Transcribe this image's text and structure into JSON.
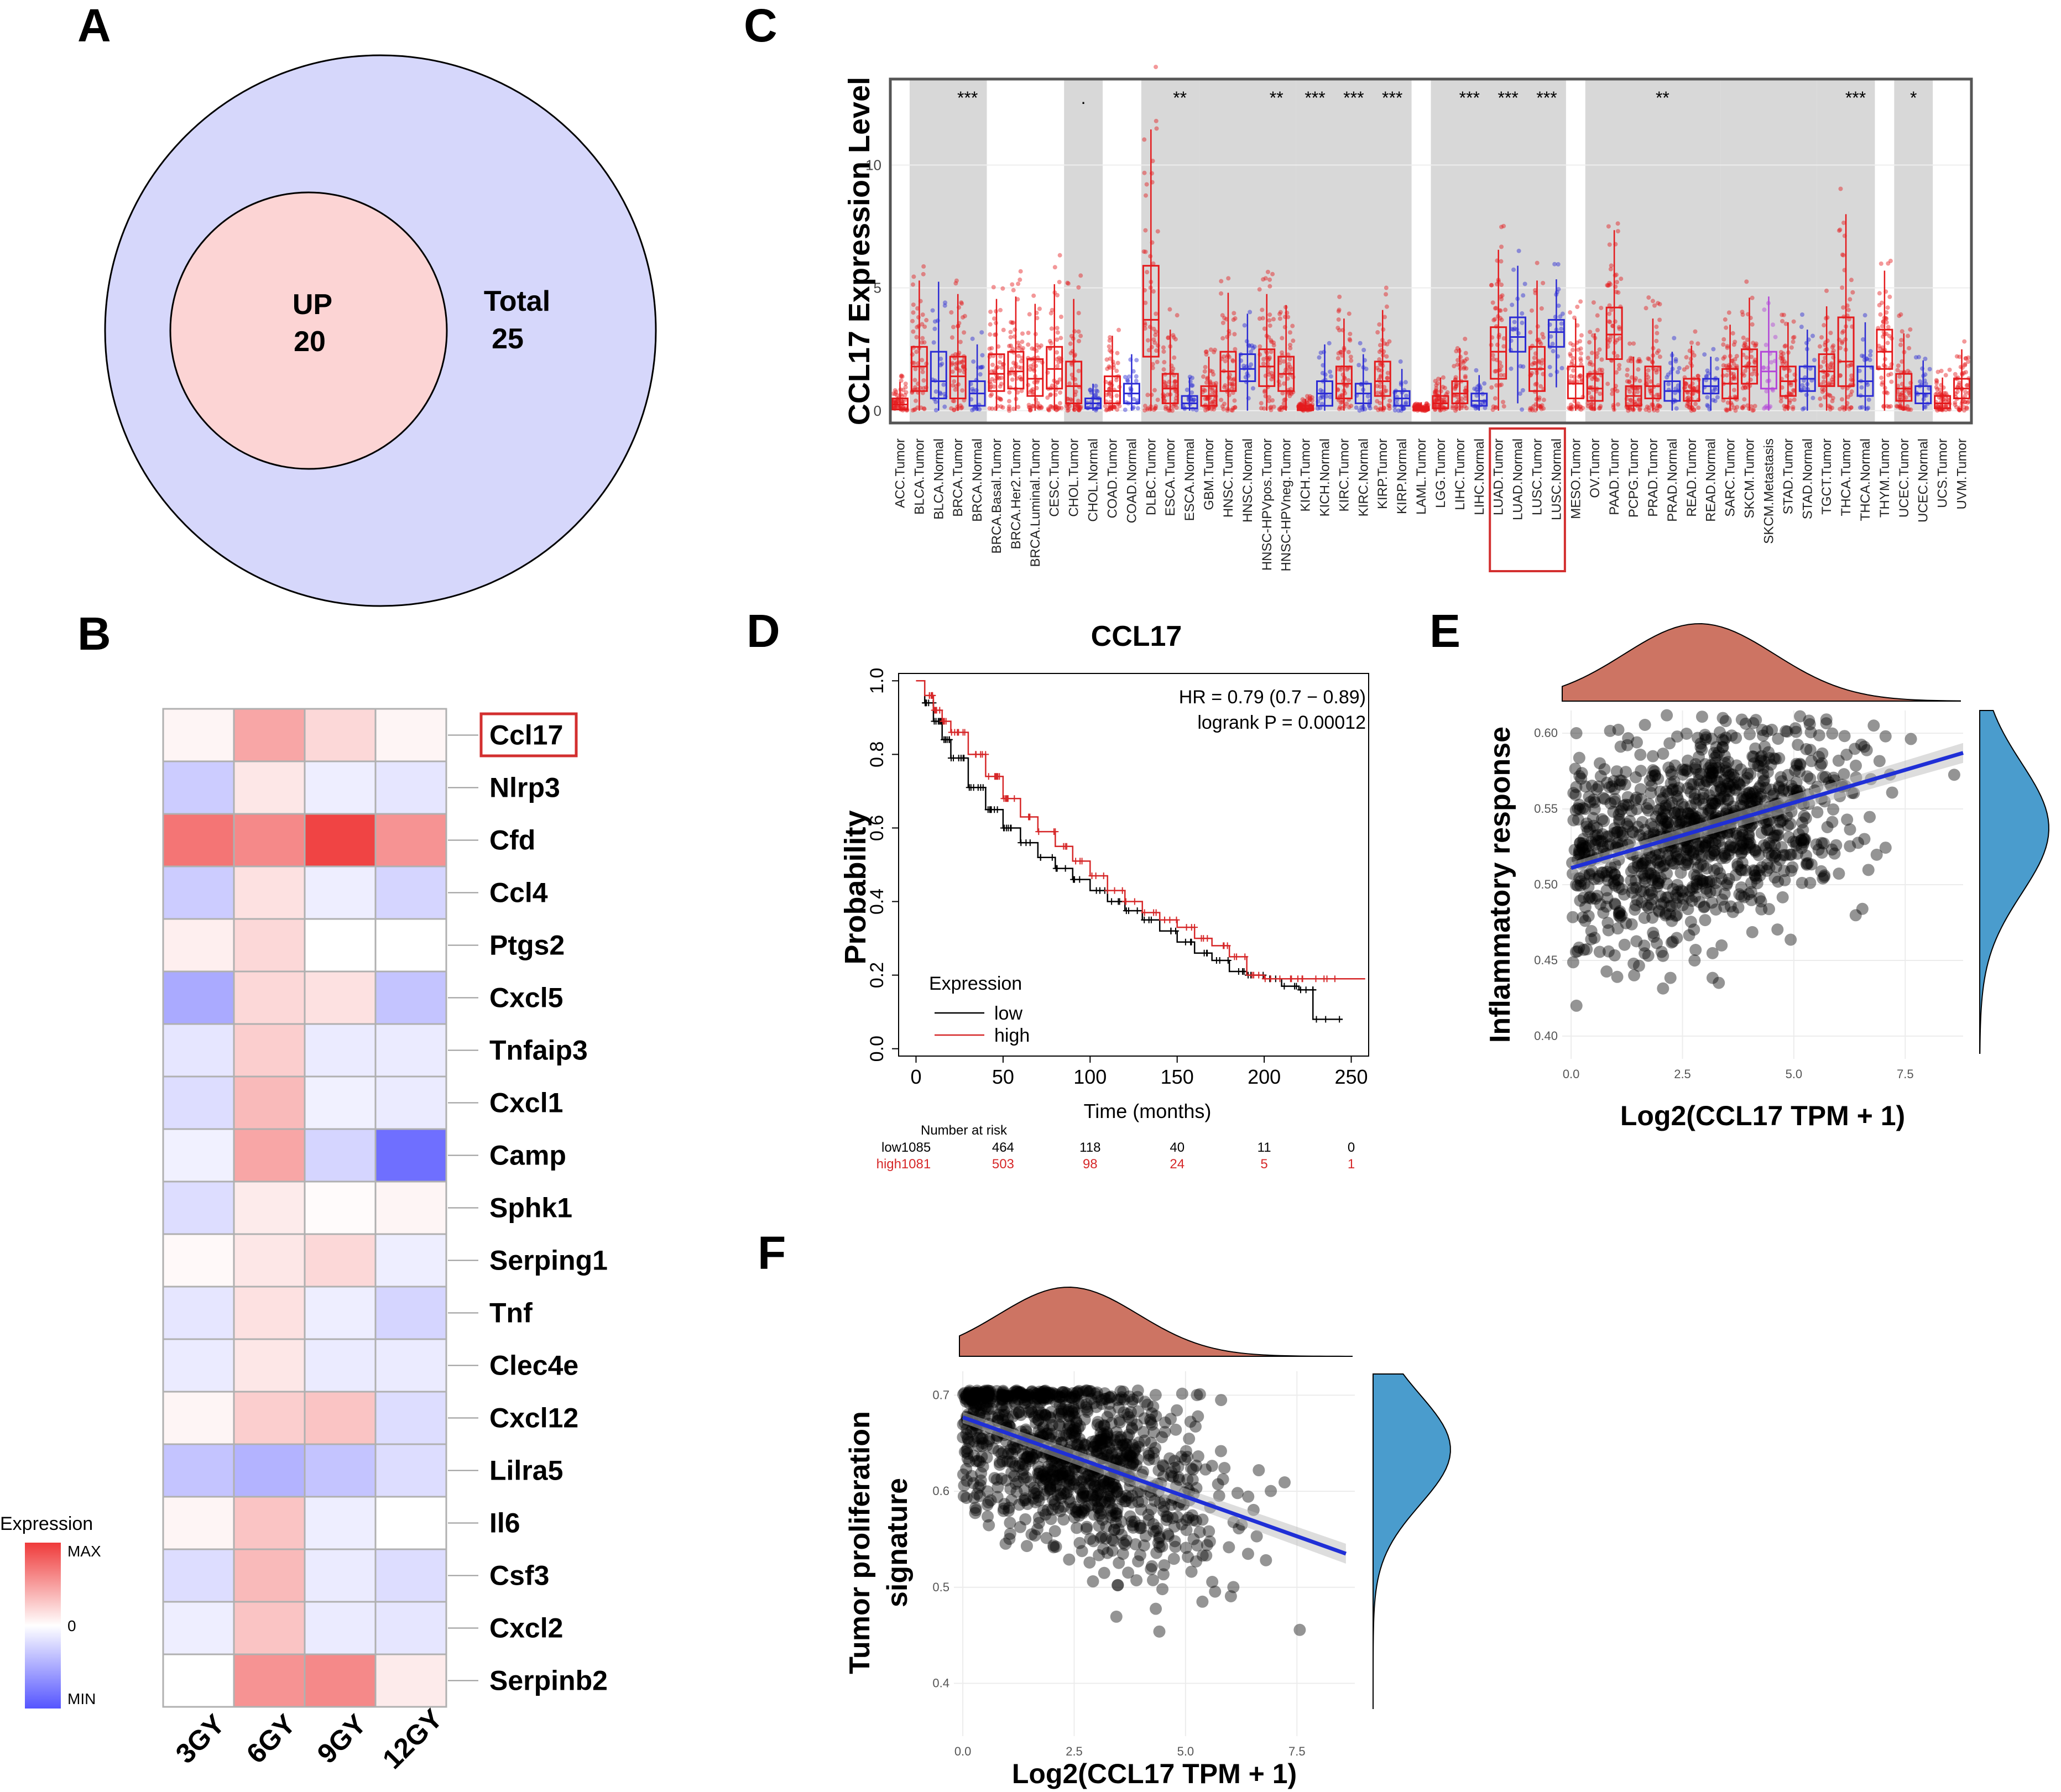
{
  "panels": {
    "A": {
      "label": "A",
      "inner_label": "UP",
      "inner_value": "20",
      "outer_label": "Total",
      "outer_value": "25",
      "colors": {
        "outer": "#d6d7fb",
        "inner": "#fcd4d4"
      }
    },
    "B": {
      "label": "B",
      "legend_title": "Expression",
      "legend_ticks": [
        "MAX",
        "0",
        "MIN"
      ],
      "highlight_gene": "Ccl17"
    },
    "C": {
      "label": "C"
    },
    "D": {
      "label": "D"
    },
    "E": {
      "label": "E"
    },
    "F": {
      "label": "F"
    }
  },
  "chart_data": [
    {
      "panel": "B",
      "type": "heatmap",
      "columns": [
        "3GY",
        "6GY",
        "9GY",
        "12GY"
      ],
      "rows": [
        "Ccl17",
        "Nlrp3",
        "Cfd",
        "Ccl4",
        "Ptgs2",
        "Cxcl5",
        "Tnfaip3",
        "Cxcl1",
        "Camp",
        "Sphk1",
        "Serping1",
        "Tnf",
        "Clec4e",
        "Cxcl12",
        "Lilra5",
        "Il6",
        "Csf3",
        "Cxcl2",
        "Serpinb2"
      ],
      "values": [
        [
          0.05,
          0.45,
          0.2,
          0.05
        ],
        [
          -0.3,
          0.12,
          -0.1,
          -0.15
        ],
        [
          0.7,
          0.6,
          0.95,
          0.55
        ],
        [
          -0.3,
          0.15,
          -0.1,
          -0.25
        ],
        [
          0.08,
          0.2,
          0.0,
          0.0
        ],
        [
          -0.5,
          0.2,
          0.15,
          -0.35
        ],
        [
          -0.15,
          0.25,
          -0.12,
          -0.12
        ],
        [
          -0.2,
          0.35,
          -0.08,
          -0.12
        ],
        [
          -0.08,
          0.45,
          -0.25,
          -0.85
        ],
        [
          -0.2,
          0.1,
          0.02,
          0.05
        ],
        [
          0.03,
          0.12,
          0.2,
          -0.1
        ],
        [
          -0.15,
          0.15,
          -0.1,
          -0.25
        ],
        [
          -0.12,
          0.12,
          -0.12,
          -0.12
        ],
        [
          0.05,
          0.25,
          0.3,
          -0.2
        ],
        [
          -0.35,
          -0.45,
          -0.35,
          -0.2
        ],
        [
          0.05,
          0.3,
          -0.1,
          0.0
        ],
        [
          -0.2,
          0.35,
          -0.12,
          -0.2
        ],
        [
          -0.1,
          0.3,
          -0.12,
          -0.15
        ],
        [
          0.0,
          0.55,
          0.6,
          0.1
        ]
      ],
      "color_scale": {
        "max": "#ef3a3a",
        "mid": "#ffffff",
        "min": "#5555ff"
      }
    },
    {
      "panel": "C",
      "type": "box",
      "ylabel": "CCL17 Expression Level",
      "yticks": [
        0,
        5,
        10
      ],
      "ylim": [
        -0.5,
        13.5
      ],
      "highlight": [
        "LUAD.Tumor",
        "LUAD.Normal",
        "LUSC.Tumor",
        "LUSC.Normal"
      ],
      "categories": [
        "ACC.Tumor",
        "BLCA.Tumor",
        "BLCA.Normal",
        "BRCA.Tumor",
        "BRCA.Normal",
        "BRCA.Basal.Tumor",
        "BRCA.Her2.Tumor",
        "BRCA.Luminal.Tumor",
        "CESC.Tumor",
        "CHOL.Tumor",
        "CHOL.Normal",
        "COAD.Tumor",
        "COAD.Normal",
        "DLBC.Tumor",
        "ESCA.Tumor",
        "ESCA.Normal",
        "GBM.Tumor",
        "HNSC.Tumor",
        "HNSC.Normal",
        "HNSC-HPVpos.Tumor",
        "HNSC-HPVneg.Tumor",
        "KICH.Tumor",
        "KICH.Normal",
        "KIRC.Tumor",
        "KIRC.Normal",
        "KIRP.Tumor",
        "KIRP.Normal",
        "LAML.Tumor",
        "LGG.Tumor",
        "LIHC.Tumor",
        "LIHC.Normal",
        "LUAD.Tumor",
        "LUAD.Normal",
        "LUSC.Tumor",
        "LUSC.Normal",
        "MESO.Tumor",
        "OV.Tumor",
        "PAAD.Tumor",
        "PCPG.Tumor",
        "PRAD.Tumor",
        "PRAD.Normal",
        "READ.Tumor",
        "READ.Normal",
        "SARC.Tumor",
        "SKCM.Tumor",
        "SKCM.Metastasis",
        "STAD.Tumor",
        "STAD.Normal",
        "TGCT.Tumor",
        "THCA.Tumor",
        "THCA.Normal",
        "THYM.Tumor",
        "UCEC.Tumor",
        "UCEC.Normal",
        "UCS.Tumor",
        "UVM.Tumor"
      ],
      "group": [
        "T",
        "T",
        "N",
        "T",
        "N",
        "T",
        "T",
        "T",
        "T",
        "T",
        "N",
        "T",
        "N",
        "T",
        "T",
        "N",
        "T",
        "T",
        "N",
        "T",
        "T",
        "T",
        "N",
        "T",
        "N",
        "T",
        "N",
        "T",
        "T",
        "T",
        "N",
        "T",
        "N",
        "T",
        "N",
        "T",
        "T",
        "T",
        "T",
        "T",
        "N",
        "T",
        "N",
        "T",
        "T",
        "M",
        "T",
        "N",
        "T",
        "T",
        "N",
        "T",
        "T",
        "N",
        "T",
        "T"
      ],
      "box": [
        [
          0.05,
          0.25,
          0.5
        ],
        [
          0.8,
          1.8,
          2.6
        ],
        [
          0.5,
          1.2,
          2.4
        ],
        [
          0.5,
          1.4,
          2.2
        ],
        [
          0.2,
          0.7,
          1.2
        ],
        [
          0.8,
          1.5,
          2.3
        ],
        [
          0.9,
          1.6,
          2.4
        ],
        [
          0.6,
          1.3,
          2.1
        ],
        [
          0.9,
          1.7,
          2.6
        ],
        [
          0.3,
          1.0,
          2.0
        ],
        [
          0.1,
          0.3,
          0.5
        ],
        [
          0.3,
          0.8,
          1.4
        ],
        [
          0.3,
          0.7,
          1.1
        ],
        [
          2.2,
          3.7,
          5.9
        ],
        [
          0.3,
          0.9,
          1.5
        ],
        [
          0.1,
          0.3,
          0.6
        ],
        [
          0.2,
          0.6,
          1.0
        ],
        [
          0.8,
          1.6,
          2.4
        ],
        [
          1.2,
          1.7,
          2.3
        ],
        [
          1.0,
          1.8,
          2.5
        ],
        [
          0.8,
          1.5,
          2.2
        ],
        [
          0.02,
          0.1,
          0.2
        ],
        [
          0.2,
          0.7,
          1.2
        ],
        [
          0.5,
          1.1,
          1.8
        ],
        [
          0.3,
          0.7,
          1.1
        ],
        [
          0.6,
          1.2,
          2.0
        ],
        [
          0.2,
          0.5,
          0.8
        ],
        [
          0.02,
          0.08,
          0.15
        ],
        [
          0.1,
          0.3,
          0.6
        ],
        [
          0.3,
          0.7,
          1.2
        ],
        [
          0.2,
          0.4,
          0.7
        ],
        [
          1.3,
          2.4,
          3.4
        ],
        [
          2.4,
          3.0,
          3.8
        ],
        [
          0.8,
          1.7,
          2.6
        ],
        [
          2.6,
          3.2,
          3.7
        ],
        [
          0.5,
          1.1,
          1.8
        ],
        [
          0.4,
          0.9,
          1.5
        ],
        [
          2.1,
          3.1,
          4.2
        ],
        [
          0.2,
          0.6,
          1.0
        ],
        [
          0.5,
          1.0,
          1.8
        ],
        [
          0.4,
          0.8,
          1.2
        ],
        [
          0.4,
          0.8,
          1.3
        ],
        [
          0.7,
          1.0,
          1.3
        ],
        [
          0.5,
          1.1,
          1.7
        ],
        [
          1.1,
          1.8,
          2.5
        ],
        [
          0.9,
          1.6,
          2.4
        ],
        [
          0.6,
          1.2,
          1.8
        ],
        [
          0.8,
          1.3,
          1.8
        ],
        [
          1.0,
          1.6,
          2.3
        ],
        [
          1.0,
          2.0,
          3.8
        ],
        [
          0.6,
          1.2,
          1.8
        ],
        [
          1.7,
          2.4,
          3.3
        ],
        [
          0.4,
          0.9,
          1.5
        ],
        [
          0.3,
          0.7,
          1.0
        ],
        [
          0.1,
          0.3,
          0.6
        ],
        [
          0.5,
          0.9,
          1.3
        ]
      ],
      "significance": {
        "BRCA.Normal": "***",
        "CHOL.Normal": ".",
        "ESCA.Normal": "**",
        "HNSC-HPVneg.Tumor": "**",
        "KICH.Normal": "***",
        "KIRC.Normal": "***",
        "KIRP.Normal": "***",
        "LIHC.Normal": "***",
        "LUAD.Normal": "***",
        "LUSC.Normal": "***",
        "PRAD.Normal": "**",
        "THCA.Normal": "***",
        "UCEC.Normal": "*"
      }
    },
    {
      "panel": "D",
      "type": "line",
      "title": "CCL17",
      "xlabel": "Time (months)",
      "ylabel": "Probability",
      "xlim": [
        -10,
        260
      ],
      "ylim": [
        -0.02,
        1.02
      ],
      "xticks": [
        0,
        50,
        100,
        150,
        200,
        250
      ],
      "yticks": [
        0.0,
        0.2,
        0.4,
        0.6,
        0.8,
        1.0
      ],
      "annotation_hr": "HR = 0.79 (0.7 − 0.89)",
      "annotation_p": "logrank P = 0.00012",
      "legend_title": "Expression",
      "series": [
        {
          "name": "low",
          "color": "#000000",
          "x": [
            0,
            5,
            10,
            15,
            20,
            30,
            40,
            50,
            60,
            70,
            80,
            90,
            100,
            110,
            120,
            130,
            140,
            150,
            160,
            170,
            180,
            190,
            200,
            210,
            220,
            228,
            228,
            245
          ],
          "y": [
            1.0,
            0.94,
            0.89,
            0.84,
            0.79,
            0.71,
            0.65,
            0.6,
            0.56,
            0.52,
            0.49,
            0.46,
            0.43,
            0.4,
            0.375,
            0.35,
            0.32,
            0.29,
            0.26,
            0.24,
            0.21,
            0.2,
            0.19,
            0.17,
            0.16,
            0.16,
            0.08,
            0.08
          ]
        },
        {
          "name": "high",
          "color": "#d62728",
          "x": [
            0,
            5,
            10,
            15,
            20,
            30,
            40,
            50,
            60,
            70,
            80,
            90,
            100,
            110,
            120,
            130,
            140,
            150,
            160,
            170,
            180,
            190,
            200,
            210,
            220,
            230,
            258
          ],
          "y": [
            1.0,
            0.96,
            0.92,
            0.89,
            0.86,
            0.8,
            0.74,
            0.68,
            0.63,
            0.59,
            0.55,
            0.51,
            0.47,
            0.43,
            0.4,
            0.37,
            0.35,
            0.33,
            0.3,
            0.28,
            0.25,
            0.2,
            0.19,
            0.19,
            0.19,
            0.19,
            0.19
          ]
        }
      ],
      "risk_table": {
        "header": "Number at risk",
        "times": [
          0,
          50,
          100,
          150,
          200,
          250
        ],
        "low": {
          "label": "low",
          "values": [
            "1085",
            "464",
            "118",
            "40",
            "11",
            "0"
          ]
        },
        "high": {
          "label": "high",
          "values": [
            "1081",
            "503",
            "98",
            "24",
            "5",
            "1"
          ]
        }
      }
    },
    {
      "panel": "E",
      "type": "scatter",
      "xlabel": "Log2(CCL17 TPM + 1)",
      "ylabel": "Inflammatory response",
      "xlim": [
        -0.2,
        8.8
      ],
      "ylim": [
        0.385,
        0.615
      ],
      "xticks": [
        0.0,
        2.5,
        5.0,
        7.5
      ],
      "xtick_labels": [
        "0.0",
        "2.5",
        "5.0",
        "7.5"
      ],
      "yticks": [
        0.4,
        0.45,
        0.5,
        0.55,
        0.6
      ],
      "ytick_labels": [
        "0.40",
        "0.45",
        "0.50",
        "0.55",
        "0.60"
      ],
      "regression": {
        "x": [
          0,
          8.8
        ],
        "y": [
          0.511,
          0.587
        ]
      },
      "n_points": 1100,
      "x_mean": 2.9,
      "x_sd": 1.7,
      "y_intercept": 0.511,
      "y_slope": 0.0086,
      "y_noise": 0.035,
      "marginal_x_color": "#cd7463",
      "marginal_y_color": "#4a9ccd"
    },
    {
      "panel": "F",
      "type": "scatter",
      "xlabel": "Log2(CCL17 TPM + 1)",
      "ylabel_line1": "Tumor proliferation",
      "ylabel_line2": "signature",
      "xlim": [
        -0.2,
        8.8
      ],
      "ylim": [
        0.345,
        0.725
      ],
      "xticks": [
        0.0,
        2.5,
        5.0,
        7.5
      ],
      "xtick_labels": [
        "0.0",
        "2.5",
        "5.0",
        "7.5"
      ],
      "yticks": [
        0.4,
        0.5,
        0.6,
        0.7
      ],
      "ytick_labels": [
        "0.4",
        "0.5",
        "0.6",
        "0.7"
      ],
      "regression": {
        "x": [
          0,
          8.6
        ],
        "y": [
          0.677,
          0.535
        ]
      },
      "n_points": 1100,
      "x_mean": 2.3,
      "x_sd": 1.6,
      "y_intercept": 0.677,
      "y_slope": -0.0165,
      "y_noise": 0.05,
      "marginal_x_color": "#cd7463",
      "marginal_y_color": "#4a9ccd"
    }
  ]
}
